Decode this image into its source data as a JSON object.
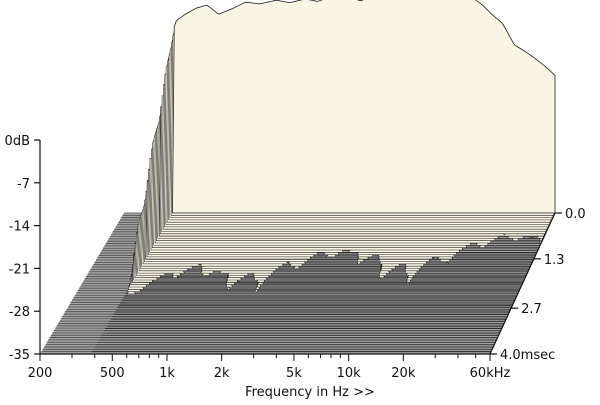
{
  "chart_data": {
    "type": "area",
    "plot_style": "cumulative spectral decay (waterfall)",
    "xlabel": "Frequency in Hz >>",
    "x_scale": "log",
    "x_ticks": [
      {
        "value": 200,
        "label": "200"
      },
      {
        "value": 500,
        "label": "500"
      },
      {
        "value": 1000,
        "label": "1k"
      },
      {
        "value": 2000,
        "label": "2k"
      },
      {
        "value": 5000,
        "label": "5k"
      },
      {
        "value": 10000,
        "label": "10k"
      },
      {
        "value": 20000,
        "label": "20k"
      },
      {
        "value": 60000,
        "label": "60kHz"
      }
    ],
    "y_ticks": [
      {
        "value": 0,
        "label": "0dB"
      },
      {
        "value": -7,
        "label": "-7"
      },
      {
        "value": -14,
        "label": "-14"
      },
      {
        "value": -21,
        "label": "-21"
      },
      {
        "value": -28,
        "label": "-28"
      },
      {
        "value": -35,
        "label": "-35"
      }
    ],
    "z_ticks": [
      {
        "value": 0.0,
        "label": "0.0"
      },
      {
        "value": 1.3,
        "label": "1.3"
      },
      {
        "value": 2.7,
        "label": "2.7"
      },
      {
        "value": 4.0,
        "label": "4.0msec"
      }
    ],
    "ylim": [
      -35,
      0
    ],
    "xlim": [
      200,
      60000
    ],
    "zlim": [
      0,
      4.0
    ],
    "front_slice_db": [
      [
        380,
        -35
      ],
      [
        385,
        -5
      ],
      [
        400,
        -3.5
      ],
      [
        450,
        -2.5
      ],
      [
        520,
        -1.5
      ],
      [
        600,
        -1.0
      ],
      [
        700,
        -2.5
      ],
      [
        850,
        -1.5
      ],
      [
        1000,
        -0.5
      ],
      [
        1200,
        -0.8
      ],
      [
        1500,
        -0.2
      ],
      [
        1800,
        -0.6
      ],
      [
        2200,
        0.0
      ],
      [
        2600,
        -0.4
      ],
      [
        3000,
        0.3
      ],
      [
        3500,
        -0.1
      ],
      [
        4000,
        0.2
      ],
      [
        4600,
        -0.3
      ],
      [
        5200,
        0.4
      ],
      [
        6000,
        0.0
      ],
      [
        7000,
        0.6
      ],
      [
        8000,
        0.2
      ],
      [
        9000,
        0.8
      ],
      [
        10000,
        0.4
      ],
      [
        12000,
        0.7
      ],
      [
        14000,
        0.1
      ],
      [
        16000,
        0.5
      ],
      [
        18000,
        0.9
      ],
      [
        20000,
        0.3
      ],
      [
        23000,
        -1.0
      ],
      [
        26000,
        -2.5
      ],
      [
        30000,
        -4.0
      ],
      [
        35000,
        -7.5
      ],
      [
        40000,
        -8.5
      ],
      [
        45000,
        -9.5
      ],
      [
        50000,
        -10.5
      ],
      [
        55000,
        -11.5
      ],
      [
        60000,
        -12.5
      ]
    ],
    "colors": {
      "surface": "#f8f5e4",
      "surface_line": "#1e1e1e",
      "floor": "#a3a3a3",
      "floor_line": "#4a4a4a",
      "axis": "#111111"
    }
  }
}
